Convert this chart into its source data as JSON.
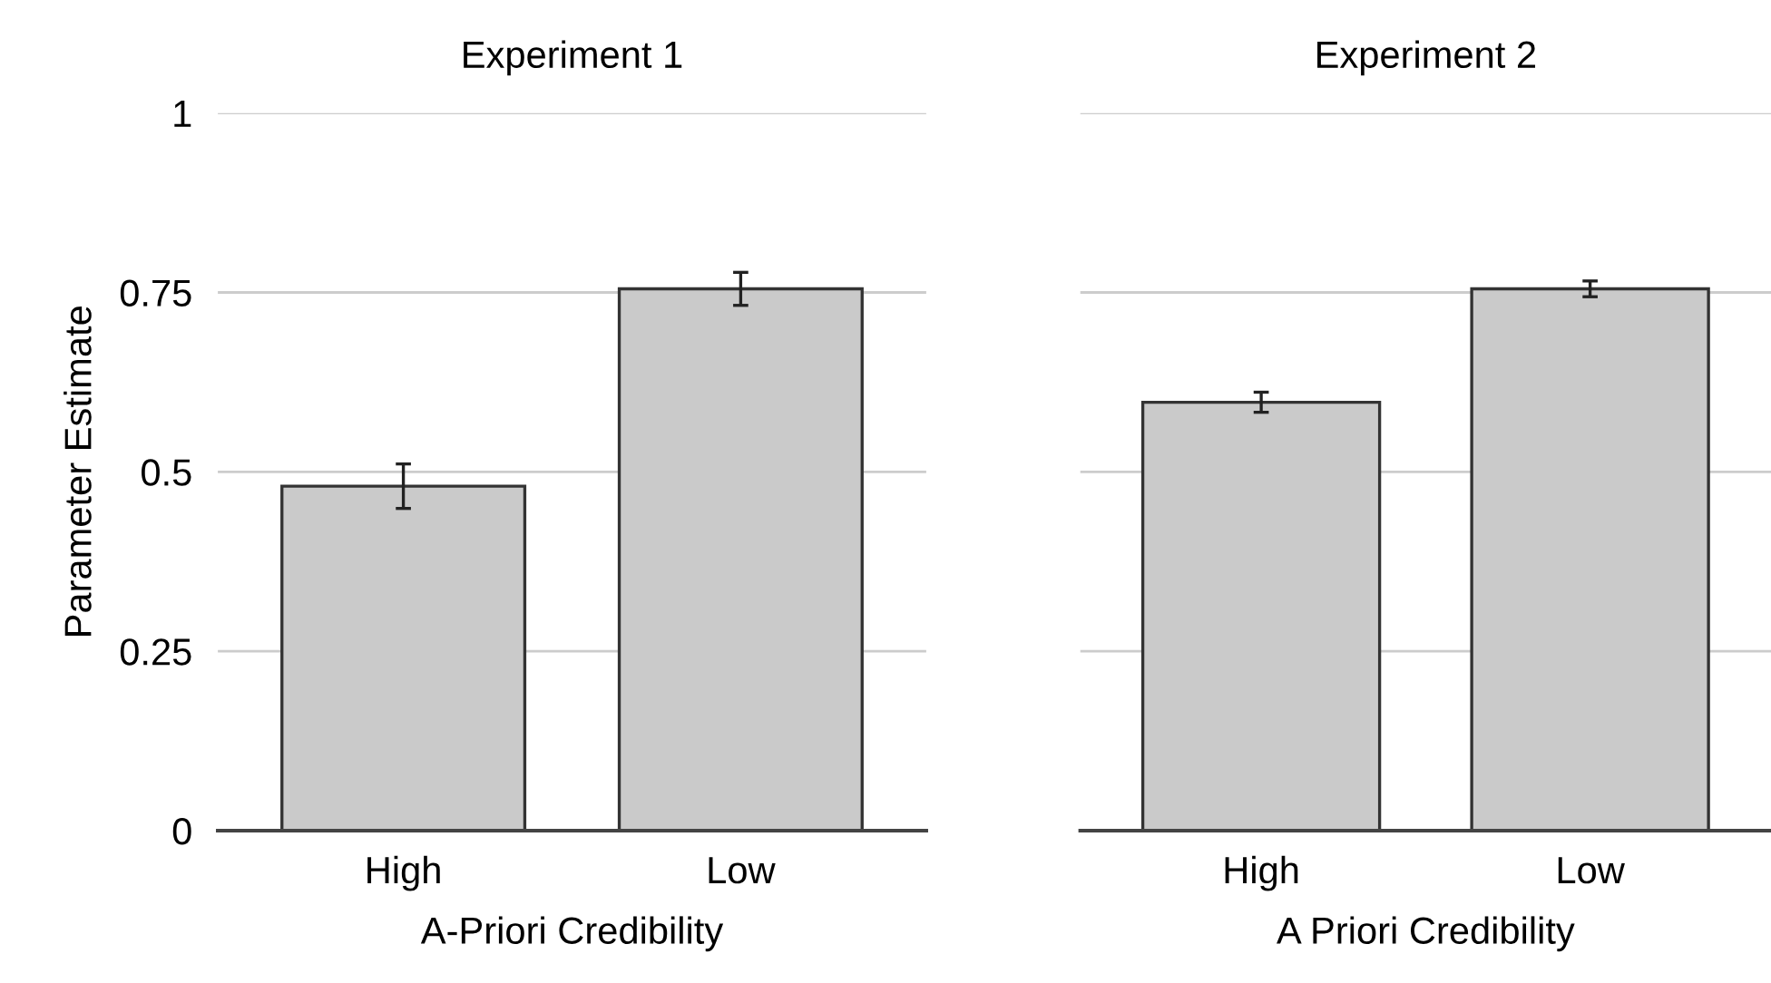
{
  "chart_data": [
    {
      "type": "bar",
      "title": "Experiment 1",
      "xlabel": "A-Priori Credibility",
      "ylabel": "Parameter Estimate",
      "categories": [
        "High",
        "Low"
      ],
      "values": [
        0.48,
        0.755
      ],
      "errors": [
        0.031,
        0.023
      ],
      "color": "#cacaca",
      "ylim": [
        0,
        1
      ],
      "yticks": [
        0,
        0.25,
        0.5,
        0.75,
        1
      ],
      "grid": "y"
    },
    {
      "type": "bar",
      "title": "Experiment 2",
      "xlabel": "A Priori Credibility",
      "categories": [
        "High",
        "Low"
      ],
      "values": [
        0.597,
        0.755
      ],
      "errors": [
        0.014,
        0.011
      ],
      "color": "#cacaca",
      "ylim": [
        0,
        1
      ],
      "yticks": [
        0,
        0.25,
        0.5,
        0.75,
        1
      ],
      "grid": "y",
      "tick_labels": "x"
    }
  ]
}
